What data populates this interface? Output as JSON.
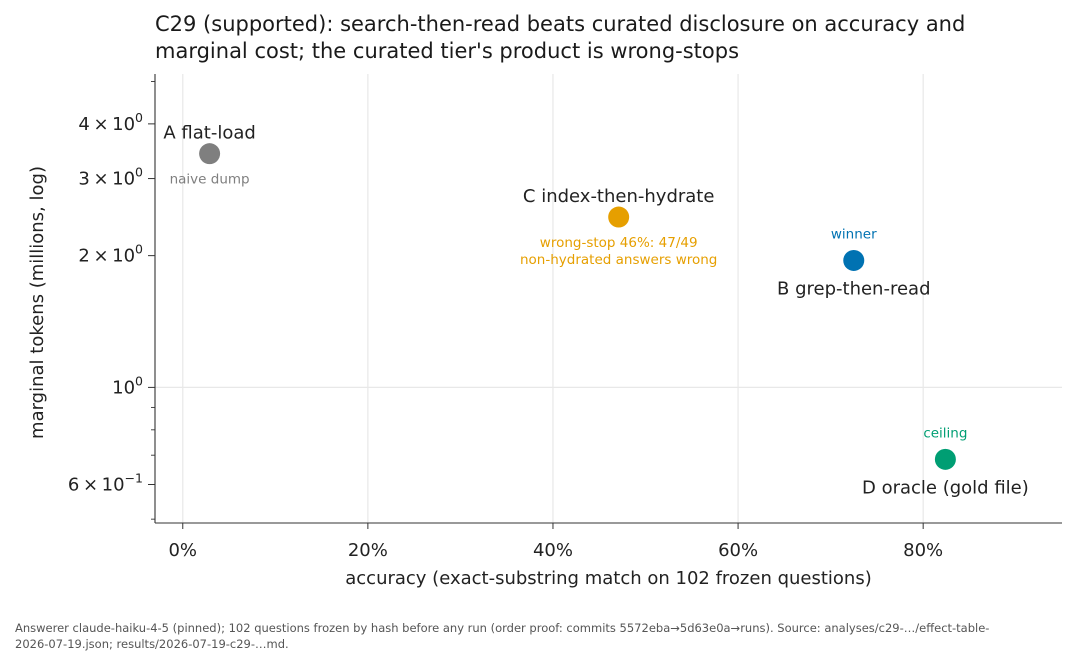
{
  "chart_data": {
    "type": "scatter",
    "title": "C29 (supported): search-then-read beats curated disclosure on accuracy and marginal cost; the curated tier's product is wrong-stops",
    "xlabel": "accuracy (exact-substring match on 102 frozen questions)",
    "ylabel": "marginal tokens (millions, log)",
    "xlim": [
      -0.03,
      0.95
    ],
    "ylim": [
      0.49,
      5.2
    ],
    "yscale": "log",
    "x_ticks": [
      {
        "value": 0.0,
        "label": "0%"
      },
      {
        "value": 0.2,
        "label": "20%"
      },
      {
        "value": 0.4,
        "label": "40%"
      },
      {
        "value": 0.6,
        "label": "60%"
      },
      {
        "value": 0.8,
        "label": "80%"
      }
    ],
    "y_ticks": [
      {
        "value": 0.6,
        "base": "6",
        "exp": "−1"
      },
      {
        "value": 1.0,
        "base": "",
        "exp": "0"
      },
      {
        "value": 2.0,
        "base": "2",
        "exp": "0"
      },
      {
        "value": 3.0,
        "base": "3",
        "exp": "0"
      },
      {
        "value": 4.0,
        "base": "4",
        "exp": "0"
      }
    ],
    "grid": true,
    "points": [
      {
        "label": "A flat-load",
        "x": 0.029,
        "y": 3.42,
        "color": "#7f7f7f",
        "note": [
          "naive dump"
        ],
        "label_pos": "above",
        "note_pos": "below"
      },
      {
        "label": "C index-then-hydrate",
        "x": 0.471,
        "y": 2.45,
        "color": "#e69f00",
        "note": [
          "wrong-stop 46%: 47/49",
          "non-hydrated answers wrong"
        ],
        "label_pos": "above",
        "note_pos": "below"
      },
      {
        "label": "B grep-then-read",
        "x": 0.725,
        "y": 1.95,
        "color": "#0072b2",
        "note": [
          "winner"
        ],
        "label_pos": "below",
        "note_pos": "above"
      },
      {
        "label": "D oracle (gold file)",
        "x": 0.824,
        "y": 0.685,
        "color": "#009e73",
        "note": [
          "ceiling"
        ],
        "label_pos": "below",
        "note_pos": "above"
      }
    ]
  },
  "footnote": "Answerer claude-haiku-4-5 (pinned); 102 questions frozen by hash before any run (order proof: commits 5572eba→5d63e0a→runs). Source: analyses/c29-…/effect-table-2026-07-19.json; results/2026-07-19-c29-…md."
}
